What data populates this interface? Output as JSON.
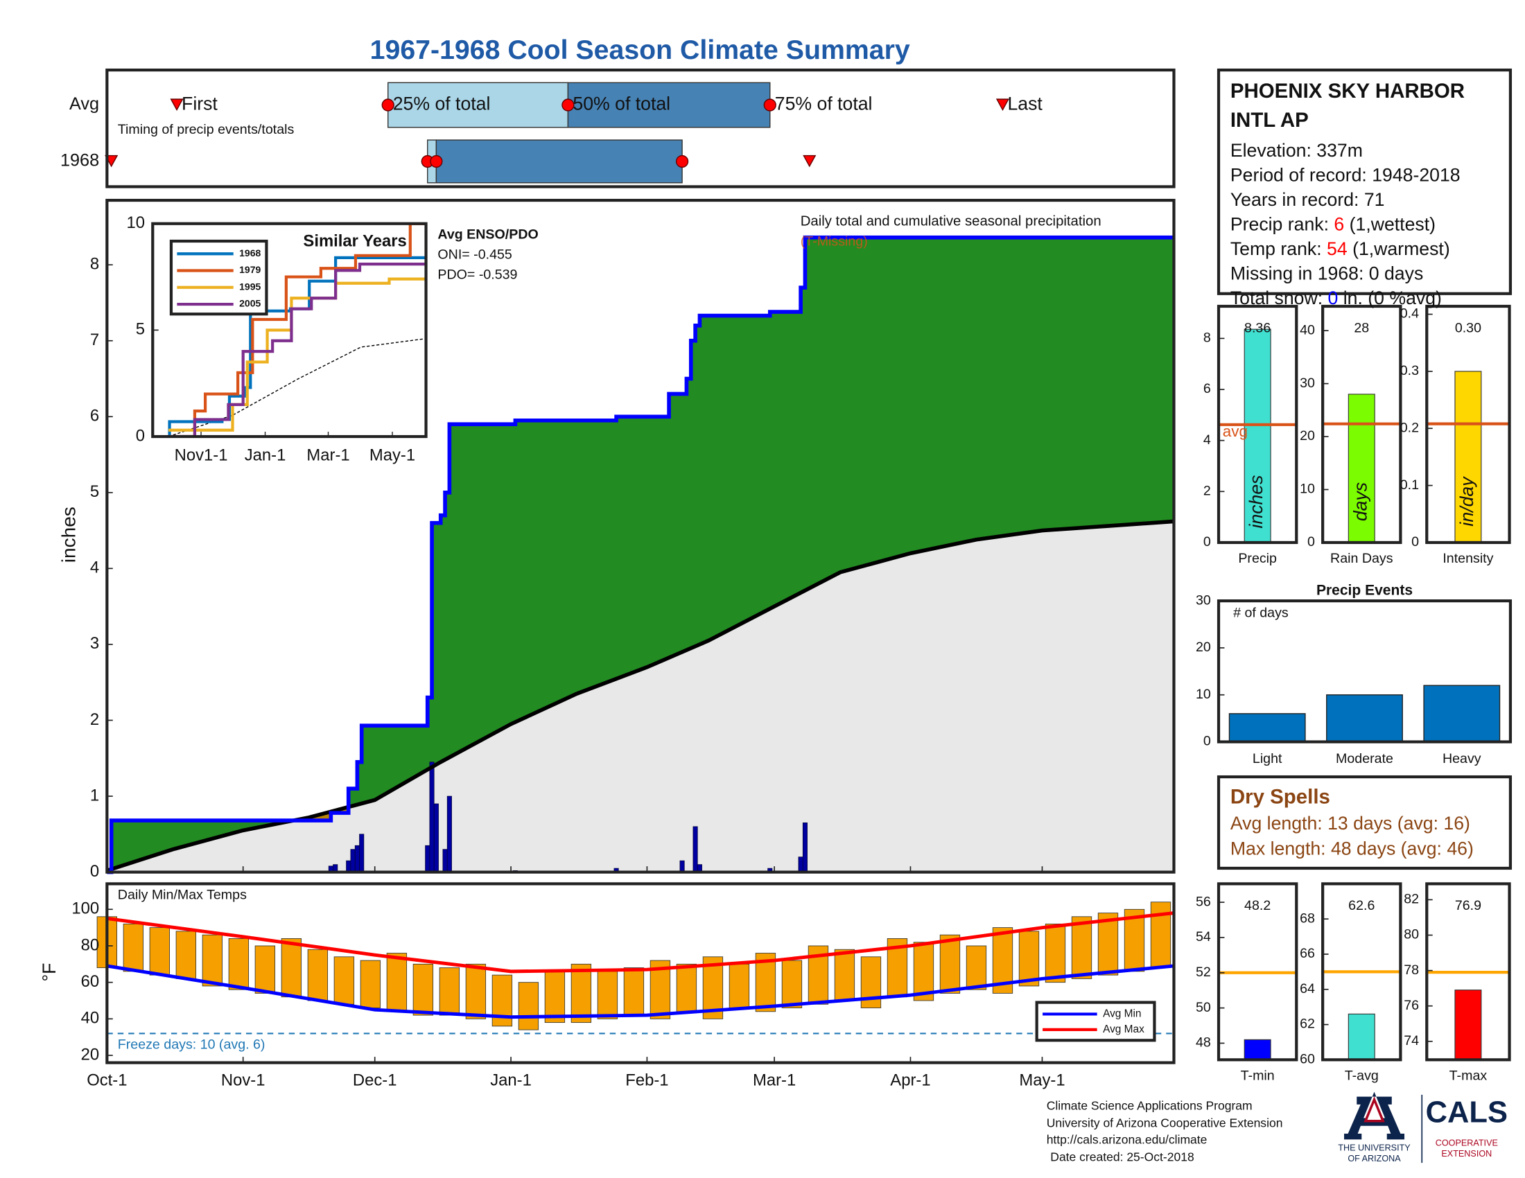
{
  "title": "1967-1968 Cool Season Climate Summary",
  "chart_data": [
    {
      "type": "timeline",
      "labels": [
        "First",
        "25% of total",
        "50% of total",
        "75% of total",
        "Last"
      ],
      "note": "Timing of precip events/totals",
      "xlim": [
        0,
        243
      ],
      "series": [
        {
          "name": "Avg",
          "values": [
            15.9,
            64,
            105,
            151,
            204
          ]
        },
        {
          "name": "1968",
          "values": [
            1,
            73,
            75,
            131,
            160
          ]
        }
      ],
      "colors": {
        "marker": "#ff0000",
        "box_low": "#aad6e8",
        "box_high": "#4682b4"
      }
    },
    {
      "type": "precip_area",
      "ylabel": "inches",
      "annotation": "Daily total and cumulative seasonal precipitation",
      "missing_note": "(T-Missing)",
      "missing_color": "#d95319",
      "xlim": [
        0,
        243
      ],
      "ylim": [
        0,
        8.85
      ],
      "yticks": [
        0,
        1,
        2,
        3,
        4,
        5,
        6,
        7,
        8
      ],
      "cumulative": {
        "color": "#0000ff",
        "x": [
          0,
          1,
          51,
          55,
          57,
          58,
          73,
          74,
          76,
          77,
          78,
          93,
          116,
          128,
          132,
          133,
          134,
          135,
          151,
          158,
          159,
          243
        ],
        "values": [
          0,
          0.68,
          0.78,
          1.1,
          1.45,
          1.93,
          2.3,
          4.6,
          4.7,
          5.0,
          5.9,
          5.95,
          6.0,
          6.3,
          6.5,
          7.0,
          7.2,
          7.33,
          7.38,
          7.7,
          8.36,
          8.36
        ]
      },
      "average": {
        "color": "#000000",
        "x": [
          0,
          15,
          31,
          46,
          61,
          76,
          92,
          107,
          123,
          137,
          152,
          167,
          183,
          198,
          213,
          228,
          243
        ],
        "values": [
          0.02,
          0.3,
          0.55,
          0.72,
          0.95,
          1.45,
          1.95,
          2.35,
          2.7,
          3.05,
          3.5,
          3.95,
          4.2,
          4.38,
          4.5,
          4.56,
          4.62
        ]
      },
      "daily": {
        "color": "#0000a0",
        "x": [
          51,
          52,
          55,
          56,
          57,
          58,
          73,
          74,
          75,
          77,
          78,
          93,
          116,
          131,
          134,
          135,
          151,
          158,
          159
        ],
        "values": [
          0.08,
          0.1,
          0.15,
          0.3,
          0.35,
          0.5,
          0.35,
          1.45,
          0.9,
          0.3,
          1.0,
          0.02,
          0.05,
          0.15,
          0.6,
          0.1,
          0.05,
          0.2,
          0.65
        ]
      },
      "colors": {
        "above": "#228b22",
        "below": "#b8860b",
        "base": "#e8e8e8"
      }
    },
    {
      "type": "line",
      "title": "Similar Years",
      "xlim": [
        -15,
        245
      ],
      "ylim": [
        0,
        10
      ],
      "yticks": [
        0,
        5,
        10
      ],
      "xticks": [
        {
          "value": 31,
          "label": "Nov1-1"
        },
        {
          "value": 92,
          "label": "Jan-1"
        },
        {
          "value": 152,
          "label": "Mar-1"
        },
        {
          "value": 213,
          "label": "May-1"
        }
      ],
      "series": [
        {
          "name": "1968",
          "color": "#0072bd",
          "x": [
            0,
            1,
            51,
            58,
            73,
            78,
            116,
            134,
            159,
            245
          ],
          "values": [
            0,
            0.7,
            0.8,
            1.9,
            2.3,
            5.9,
            6.0,
            7.3,
            8.4,
            8.4
          ]
        },
        {
          "name": "1979",
          "color": "#d95319",
          "x": [
            0,
            25,
            35,
            66,
            80,
            112,
            145,
            178,
            230,
            245
          ],
          "values": [
            0,
            1.2,
            2,
            3,
            5.5,
            7.5,
            7.9,
            8.5,
            10,
            10
          ]
        },
        {
          "name": "1995",
          "color": "#edb120",
          "x": [
            0,
            61,
            75,
            94,
            117,
            159,
            210,
            245
          ],
          "values": [
            0.3,
            1.5,
            3.5,
            5,
            6.5,
            7.2,
            7.4,
            7.5
          ]
        },
        {
          "name": "2005",
          "color": "#7e2f8e",
          "x": [
            0,
            25,
            57,
            71,
            99,
            117,
            136,
            159,
            182,
            245
          ],
          "values": [
            0,
            0.8,
            1.5,
            4,
            4.5,
            6,
            6.5,
            7.8,
            8.1,
            8.2
          ]
        }
      ],
      "average": {
        "color": "#000000",
        "x": [
          0,
          61,
          123,
          183,
          245
        ],
        "values": [
          0,
          1,
          2.7,
          4.2,
          4.6
        ]
      },
      "side_text": [
        "Avg ENSO/PDO",
        "ONI= -0.455",
        "PDO= -0.539"
      ]
    },
    {
      "type": "range_bar",
      "title": "Daily Min/Max Temps",
      "ylabel": "°F",
      "xlim": [
        0,
        243
      ],
      "ylim": [
        16,
        114
      ],
      "yticks": [
        20,
        40,
        60,
        80,
        100
      ],
      "xticks": [
        {
          "value": 0,
          "label": "Oct-1"
        },
        {
          "value": 31,
          "label": "Nov-1"
        },
        {
          "value": 61,
          "label": "Dec-1"
        },
        {
          "value": 92,
          "label": "Jan-1"
        },
        {
          "value": 123,
          "label": "Feb-1"
        },
        {
          "value": 152,
          "label": "Mar-1"
        },
        {
          "value": 183,
          "label": "Apr-1"
        },
        {
          "value": 213,
          "label": "May-1"
        }
      ],
      "x": [
        0,
        6,
        12,
        18,
        24,
        30,
        36,
        42,
        48,
        54,
        60,
        66,
        72,
        78,
        84,
        90,
        96,
        102,
        108,
        114,
        120,
        126,
        132,
        138,
        144,
        150,
        156,
        162,
        168,
        174,
        180,
        186,
        192,
        198,
        204,
        210,
        216,
        222,
        228,
        234,
        240
      ],
      "max": [
        96,
        92,
        90,
        88,
        86,
        84,
        80,
        84,
        78,
        74,
        72,
        76,
        70,
        68,
        70,
        64,
        60,
        66,
        70,
        66,
        68,
        72,
        70,
        74,
        70,
        76,
        72,
        80,
        78,
        74,
        84,
        82,
        86,
        80,
        90,
        88,
        92,
        96,
        98,
        100,
        104
      ],
      "min": [
        68,
        66,
        64,
        62,
        58,
        56,
        54,
        52,
        50,
        48,
        46,
        44,
        42,
        42,
        40,
        36,
        34,
        38,
        38,
        40,
        42,
        40,
        44,
        40,
        46,
        44,
        46,
        48,
        50,
        46,
        52,
        50,
        54,
        56,
        54,
        58,
        60,
        62,
        64,
        66,
        68
      ],
      "bar_color": "#f5a000",
      "series": [
        {
          "name": "Avg Min",
          "color": "#0000ff",
          "x": [
            0,
            31,
            61,
            92,
            123,
            152,
            183,
            213,
            243
          ],
          "values": [
            69,
            57,
            45,
            41,
            42,
            47,
            53,
            62,
            69
          ]
        },
        {
          "name": "Avg Max",
          "color": "#ff0000",
          "x": [
            0,
            31,
            61,
            92,
            123,
            152,
            183,
            213,
            243
          ],
          "values": [
            95,
            85,
            75,
            66,
            67,
            72,
            80,
            90,
            98
          ]
        }
      ],
      "freeze_line": 32,
      "freeze_note": "Freeze days: 10 (avg. 6)",
      "freeze_color": "#1f77b4"
    },
    {
      "type": "single_bar",
      "xlabel": "Precip",
      "unit": "inches",
      "ylim": [
        0,
        9.26
      ],
      "yticks": [
        0,
        2,
        4,
        6,
        8
      ],
      "value": 8.36,
      "avg": 4.62,
      "avg_label": "avg",
      "color": "#40e0d0",
      "avg_color": "#d95319"
    },
    {
      "type": "single_bar",
      "xlabel": "Rain Days",
      "unit": "days",
      "ylim": [
        0,
        44.6
      ],
      "yticks": [
        0,
        10,
        20,
        30,
        40
      ],
      "value": 28,
      "avg": 22.4,
      "color": "#7cfc00",
      "avg_color": "#d95319"
    },
    {
      "type": "single_bar",
      "xlabel": "Intensity",
      "unit": "in/day",
      "ylim": [
        0,
        0.414
      ],
      "yticks": [
        0,
        0.1,
        0.2,
        0.3,
        0.4
      ],
      "value": 0.3,
      "value_label": "0.30",
      "avg": 0.208,
      "color": "#ffd700",
      "avg_color": "#d95319"
    },
    {
      "type": "bar",
      "title": "Precip Events",
      "note": "# of days",
      "categories": [
        "Light",
        "Moderate",
        "Heavy"
      ],
      "values": [
        6,
        10,
        12
      ],
      "ylim": [
        0,
        30
      ],
      "yticks": [
        0,
        10,
        20,
        30
      ],
      "color": "#0072bd"
    },
    {
      "type": "single_bar",
      "xlabel": "T-min",
      "ylim": [
        47.06,
        57.05
      ],
      "yticks": [
        48,
        50,
        52,
        54,
        56
      ],
      "value": 48.2,
      "avg": 52,
      "color": "#0000ff",
      "avg_color": "#ffa500"
    },
    {
      "type": "single_bar",
      "xlabel": "T-avg",
      "ylim": [
        60,
        70
      ],
      "yticks": [
        60,
        62,
        64,
        66,
        68
      ],
      "value": 62.6,
      "avg": 65,
      "color": "#40e0d0",
      "avg_color": "#ffa500"
    },
    {
      "type": "single_bar",
      "xlabel": "T-max",
      "ylim": [
        72.96,
        82.9
      ],
      "yticks": [
        74,
        76,
        78,
        80,
        82
      ],
      "value": 76.9,
      "avg": 77.9,
      "color": "#ff0000",
      "avg_color": "#ffa500"
    }
  ],
  "station": {
    "name": [
      "PHOENIX SKY HARBOR",
      "INTL AP"
    ],
    "lines": [
      [
        {
          "text": "Elevation: 337m"
        }
      ],
      [
        {
          "text": "Period of record: 1948-2018"
        }
      ],
      [
        {
          "text": "Years in record: 71"
        }
      ],
      [
        {
          "text": "Precip rank: "
        },
        {
          "text": "6",
          "color": "#ff0000"
        },
        {
          "text": " (1,wettest)"
        }
      ],
      [
        {
          "text": "Temp rank: "
        },
        {
          "text": "54",
          "color": "#ff0000"
        },
        {
          "text": " (1,warmest)"
        }
      ],
      [
        {
          "text": "Missing in 1968: 0 days"
        }
      ],
      [
        {
          "text": "Total snow: "
        },
        {
          "text": "0",
          "color": "#0000ff"
        },
        {
          "text": " in. (0 %avg)"
        }
      ]
    ]
  },
  "dry_spells": {
    "title": "Dry Spells",
    "lines": [
      "Avg length: 13 days (avg: 16)",
      "Max length: 48 days (avg: 46)"
    ],
    "color": "#8b4513"
  },
  "footer": {
    "lines": [
      "Climate Science Applications Program",
      "University of Arizona Cooperative Extension",
      "http://cals.arizona.edu/climate",
      "Date created: 25-Oct-2018"
    ],
    "logo": {
      "university": [
        "THE UNIVERSITY",
        "OF ARIZONA"
      ],
      "cals": "CALS",
      "extension": [
        "COOPERATIVE",
        "EXTENSION"
      ]
    }
  }
}
